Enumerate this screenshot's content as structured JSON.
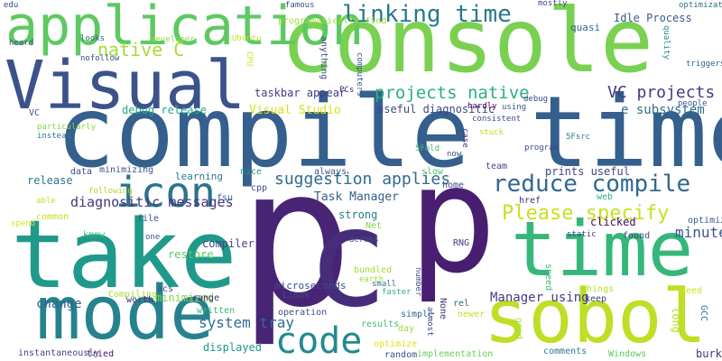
{
  "words": [
    {
      "text": "console",
      "color": "#7ad151"
    },
    {
      "text": "compile time",
      "color": "#355f8d"
    },
    {
      "text": "p",
      "color": "#482475"
    },
    {
      "text": "c",
      "color": "#472c7a"
    },
    {
      "text": "p",
      "color": "#481f70"
    },
    {
      "text": "take",
      "color": "#1f9a8a"
    },
    {
      "text": "time",
      "color": "#35b779"
    },
    {
      "text": "mode",
      "color": "#26828e"
    },
    {
      "text": "sobol",
      "color": "#bddf26"
    },
    {
      "text": "Visual",
      "color": "#3b528b"
    },
    {
      "text": "application",
      "color": "#5ec962"
    },
    {
      "text": "icon",
      "color": "#2c728e"
    },
    {
      "text": "code",
      "color": "#238a8d"
    },
    {
      "text": "linking time",
      "color": "#2a788e"
    },
    {
      "text": "reduce compile",
      "color": "#31688e"
    },
    {
      "text": "native C",
      "color": "#a5db36"
    },
    {
      "text": "Please specify",
      "color": "#c8e020"
    },
    {
      "text": "projects native",
      "color": "#29af7f"
    },
    {
      "text": "VC projects",
      "color": "#443983"
    },
    {
      "text": "suggestion applies",
      "color": "#2f6c8e"
    },
    {
      "text": "system tray",
      "color": "#2e6e8e"
    },
    {
      "text": "debug release",
      "color": "#25ac82"
    },
    {
      "text": "Visual Studio",
      "color": "#d8e219"
    },
    {
      "text": "useful diagnositic",
      "color": "#3e4989"
    },
    {
      "text": "Idle Process",
      "color": "#365c8d"
    },
    {
      "text": "e subsystem",
      "color": "#2e6f8e"
    },
    {
      "text": "prints useful",
      "color": "#414487"
    },
    {
      "text": "release",
      "color": "#2a768e"
    },
    {
      "text": "diagnositic messages",
      "color": "#46337f"
    },
    {
      "text": "Task Manager",
      "color": "#34618d"
    },
    {
      "text": "strong",
      "color": "#277f8e"
    },
    {
      "text": "minute",
      "color": "#3a548c"
    },
    {
      "text": "compiler",
      "color": "#404588"
    },
    {
      "text": "know",
      "color": "#3dbc74"
    },
    {
      "text": "restore",
      "color": "#5cc863"
    },
    {
      "text": "minimized",
      "color": "#84d44b"
    },
    {
      "text": "clicked",
      "color": "#460a5d"
    },
    {
      "text": "taskbar appear",
      "color": "#433e85"
    },
    {
      "text": "Manager using",
      "color": "#433d84"
    },
    {
      "text": "change",
      "color": "#33638d"
    },
    {
      "text": "written",
      "color": "#3aba76"
    },
    {
      "text": "displayed",
      "color": "#1f968b"
    },
    {
      "text": "results",
      "color": "#3fbc73"
    },
    {
      "text": "microseconds",
      "color": "#3e4a89"
    },
    {
      "text": "Linux",
      "color": "#3b518b"
    },
    {
      "text": "operation",
      "color": "#3c4f8a"
    },
    {
      "text": "long",
      "color": "#b5de2b"
    },
    {
      "text": "burkardt",
      "color": "#453581"
    },
    {
      "text": "GCC",
      "color": "#2b748e"
    },
    {
      "text": "keep",
      "color": "#404387"
    },
    {
      "text": "Windows",
      "color": "#5ac864"
    },
    {
      "text": "comments",
      "color": "#287c8e"
    },
    {
      "text": "implementation",
      "color": "#6ccd5a"
    },
    {
      "text": "tried",
      "color": "#471063"
    },
    {
      "text": "instantaneously",
      "color": "#3f4788"
    },
    {
      "text": "Compiling",
      "color": "#a2da37"
    },
    {
      "text": "worth",
      "color": "#46307e"
    },
    {
      "text": "scs",
      "color": "#3d4e8a"
    },
    {
      "text": "range",
      "color": "#482878"
    },
    {
      "text": "one",
      "color": "#3b528b"
    },
    {
      "text": "file",
      "color": "#3e4c8a"
    },
    {
      "text": "learning",
      "color": "#2a788e"
    },
    {
      "text": "fsu",
      "color": "#31688e"
    },
    {
      "text": "nice",
      "color": "#1e9c89"
    },
    {
      "text": "cpp",
      "color": "#3f4889"
    },
    {
      "text": "always",
      "color": "#3b528b"
    },
    {
      "text": "slow",
      "color": "#4ac16d"
    },
    {
      "text": "home",
      "color": "#3e4a89"
    },
    {
      "text": "team",
      "color": "#3f4788"
    },
    {
      "text": "href",
      "color": "#472a7a"
    },
    {
      "text": "web",
      "color": "#2db27d"
    },
    {
      "text": "found",
      "color": "#3f4788"
    },
    {
      "text": "optimizing",
      "color": "#35608d"
    },
    {
      "text": "static",
      "color": "#433e85"
    },
    {
      "text": "speed",
      "color": "#39b977"
    },
    {
      "text": "things",
      "color": "#b8de29"
    },
    {
      "text": "need",
      "color": "#d0e11c"
    },
    {
      "text": "good",
      "color": "#aadc32"
    },
    {
      "text": "rel",
      "color": "#31688e"
    },
    {
      "text": "newer",
      "color": "#c2df23"
    },
    {
      "text": "simple",
      "color": "#33638d"
    },
    {
      "text": "None",
      "color": "#46327e"
    },
    {
      "text": "almost",
      "color": "#3e4989"
    },
    {
      "text": "number",
      "color": "#3b528b"
    },
    {
      "text": "faster",
      "color": "#2db27d"
    },
    {
      "text": "small",
      "color": "#2e6e8e"
    },
    {
      "text": "earth",
      "color": "#9bd93c"
    },
    {
      "text": "bundled",
      "color": "#a8db34"
    },
    {
      "text": "RNG",
      "color": "#433e85"
    },
    {
      "text": "across",
      "color": "#3b528b"
    },
    {
      "text": "Net",
      "color": "#7fd34e"
    },
    {
      "text": "optimize",
      "color": "#dde318"
    },
    {
      "text": "random",
      "color": "#3a548c"
    },
    {
      "text": "day",
      "color": "#9bd93c"
    },
    {
      "text": "now",
      "color": "#3c4f8a"
    },
    {
      "text": "case",
      "color": "#453781"
    },
    {
      "text": "stuck",
      "color": "#bddf26"
    },
    {
      "text": "program",
      "color": "#3f4788"
    },
    {
      "text": "5Fold",
      "color": "#3dbc74"
    },
    {
      "text": "5Fsrc",
      "color": "#2a788e"
    },
    {
      "text": "consistent",
      "color": "#3e4c8a"
    },
    {
      "text": "hardly",
      "color": "#440154"
    },
    {
      "text": "using",
      "color": "#3a548c"
    },
    {
      "text": "debug",
      "color": "#3e4a89"
    },
    {
      "text": "people",
      "color": "#3b528b"
    },
    {
      "text": "PCs",
      "color": "#482475"
    },
    {
      "text": "anything",
      "color": "#3f4788"
    },
    {
      "text": "computers",
      "color": "#3a548c"
    },
    {
      "text": "programatically find",
      "color": "#a5db36"
    },
    {
      "text": "famous",
      "color": "#3d4d8a"
    },
    {
      "text": "mostly",
      "color": "#3e4989"
    },
    {
      "text": "optimization",
      "color": "#2e6e8e"
    },
    {
      "text": "quality",
      "color": "#228c8d"
    },
    {
      "text": "triggers",
      "color": "#34618d"
    },
    {
      "text": "quasi",
      "color": "#31688e"
    },
    {
      "text": "Ubuntu",
      "color": "#c5e021"
    },
    {
      "text": "CPU",
      "color": "#d2e21b"
    },
    {
      "text": "developer",
      "color": "#8fd744"
    },
    {
      "text": "looks",
      "color": "#33638d"
    },
    {
      "text": "heard",
      "color": "#3e4a89"
    },
    {
      "text": "nofollow",
      "color": "#3e4c8a"
    },
    {
      "text": "edu",
      "color": "#3f4788"
    },
    {
      "text": "VC",
      "color": "#3b528b"
    },
    {
      "text": "particularly",
      "color": "#8bd646"
    },
    {
      "text": "instead",
      "color": "#2c738e"
    },
    {
      "text": "able",
      "color": "#c0df25"
    },
    {
      "text": "spend",
      "color": "#dae319"
    },
    {
      "text": "common",
      "color": "#c2df23"
    },
    {
      "text": "following",
      "color": "#a8db34"
    },
    {
      "text": "minimizing",
      "color": "#3b528b"
    },
    {
      "text": "data",
      "color": "#3f4889"
    },
    {
      "text": "versions",
      "color": "#2d708e"
    },
    {
      "text": "work",
      "color": "#33638d"
    }
  ]
}
